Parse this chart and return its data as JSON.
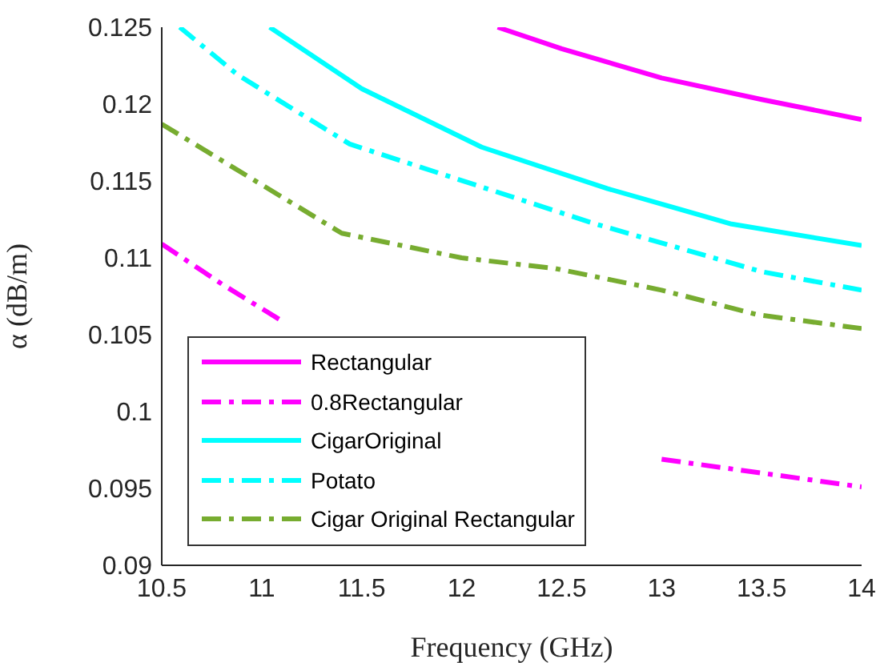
{
  "chart_data": {
    "type": "line",
    "xlabel": "Frequency (GHz)",
    "ylabel": "α (dB/m)",
    "xlim": [
      10.5,
      14
    ],
    "xticks": [
      10.5,
      11,
      11.5,
      12,
      12.5,
      13,
      13.5,
      14
    ],
    "ylim": [
      0.09,
      0.125
    ],
    "yticks": [
      0.09,
      0.095,
      0.1,
      0.105,
      0.11,
      0.115,
      0.12,
      0.125
    ],
    "grid": false,
    "legend": "bottom left",
    "marker": "none",
    "series": [
      {
        "name": "Rectangular",
        "color": "#ff00ff",
        "line_style": "solid",
        "x": [
          12.18,
          12.5,
          13,
          13.5,
          14
        ],
        "values": [
          0.125,
          0.1236,
          0.1217,
          0.1203,
          0.119
        ]
      },
      {
        "name": "0.8Rectangular",
        "color": "#ff00ff",
        "line_style": "dashed",
        "x": [
          10.5,
          10.8,
          11.1,
          12,
          13,
          13.5,
          14
        ],
        "values": [
          0.1109,
          0.1083,
          0.1059,
          null,
          0.0969,
          0.096,
          0.0951
        ]
      },
      {
        "name": "CigarOriginal",
        "color": "#00ffff",
        "line_style": "solid",
        "x": [
          11.04,
          11.5,
          12.1,
          12.73,
          13.35,
          14
        ],
        "values": [
          0.125,
          0.121,
          0.1172,
          0.1145,
          0.1122,
          0.1108
        ]
      },
      {
        "name": "Potato",
        "color": "#00ffff",
        "line_style": "dashed",
        "x": [
          10.59,
          10.88,
          11.44,
          12.67,
          13.5,
          14
        ],
        "values": [
          0.125,
          0.1219,
          0.1174,
          0.1122,
          0.1091,
          0.1079
        ]
      },
      {
        "name": "Cigar Original Rectangular",
        "color": "#77ac30",
        "line_style": "dashed",
        "x": [
          10.5,
          11.4,
          12,
          12.47,
          13,
          13.48,
          14
        ],
        "values": [
          0.1187,
          0.1116,
          0.11,
          0.1093,
          0.1079,
          0.1063,
          0.1054
        ]
      }
    ]
  }
}
